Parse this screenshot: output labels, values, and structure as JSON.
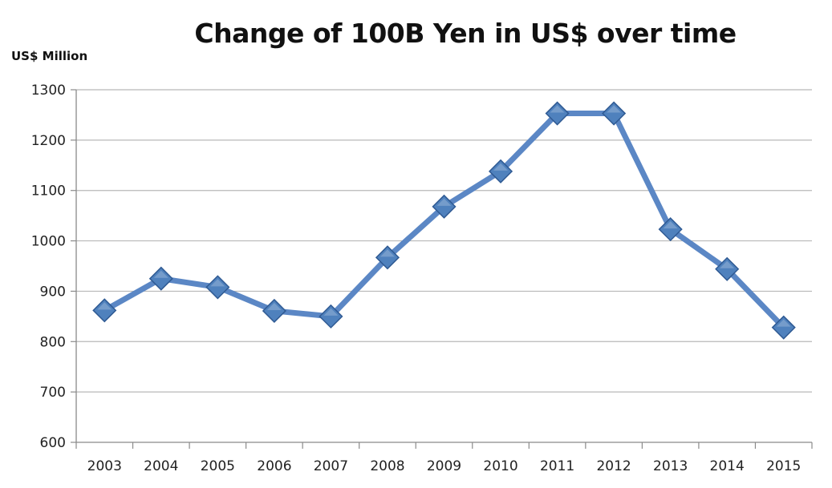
{
  "chart_data": {
    "type": "line",
    "title": "Change of 100B Yen in US$ over time",
    "ylabel": "US$ Million",
    "xlabel": "",
    "categories": [
      "2003",
      "2004",
      "2005",
      "2006",
      "2007",
      "2008",
      "2009",
      "2010",
      "2011",
      "2012",
      "2013",
      "2014",
      "2015"
    ],
    "series": [
      {
        "values": [
          862,
          925,
          908,
          861,
          850,
          967,
          1068,
          1138,
          1253,
          1253,
          1023,
          944,
          828
        ],
        "color": "#4f81bd",
        "marker": "diamond"
      }
    ],
    "ylim": [
      600,
      1300
    ],
    "yticks": [
      "600",
      "700",
      "800",
      "900",
      "1000",
      "1100",
      "1200",
      "1300"
    ],
    "grid": true,
    "legend": "none"
  },
  "colors": {
    "line": "#5b87c5",
    "marker_fill": "#4f81bd",
    "marker_stroke": "#2f5a93",
    "grid": "#b8b8b8",
    "axis": "#8a8a8a"
  }
}
